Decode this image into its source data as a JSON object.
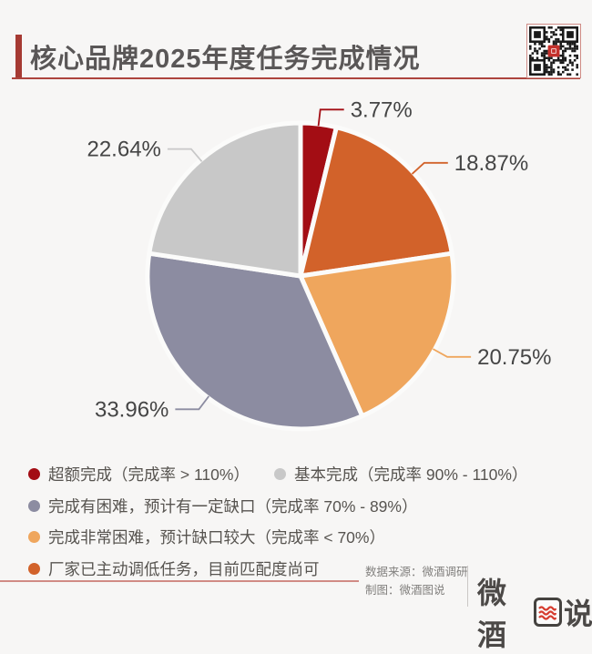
{
  "header": {
    "title": "核心品牌2025年度任务完成情况",
    "accent_color": "#a63a33",
    "qr_icon": "qr-code"
  },
  "chart_data": {
    "type": "pie",
    "title": "核心品牌2025年度任务完成情况",
    "direction": "clockwise",
    "start_angle_deg": 0,
    "legend_position": "bottom-left",
    "series": [
      {
        "name": "超额完成（完成率 > 110%）",
        "value": 3.77,
        "label": "3.77%",
        "color": "#a30d14"
      },
      {
        "name": "厂家已主动调低任务，目前匹配度尚可",
        "value": 18.87,
        "label": "18.87%",
        "color": "#d2622a"
      },
      {
        "name": "完成非常困难，预计缺口较大（完成率 < 70%）",
        "value": 20.75,
        "label": "20.75%",
        "color": "#efa65d"
      },
      {
        "name": "完成有困难，预计有一定缺口（完成率 70% - 89%）",
        "value": 33.96,
        "label": "33.96%",
        "color": "#8c8ca1"
      },
      {
        "name": "基本完成（完成率 90% - 110%）",
        "value": 22.64,
        "label": "22.64%",
        "color": "#c8c8c8"
      }
    ],
    "label_color": "#454545"
  },
  "legend": {
    "items": [
      {
        "color": "#a30d14",
        "label": "超额完成（完成率 > 110%）"
      },
      {
        "color": "#c8c8c8",
        "label": "基本完成（完成率 90% - 110%）"
      },
      {
        "color": "#8c8ca1",
        "label": "完成有困难，预计有一定缺口（完成率 70% - 89%）"
      },
      {
        "color": "#efa65d",
        "label": "完成非常困难，预计缺口较大（完成率 < 70%）"
      },
      {
        "color": "#d2622a",
        "label": "厂家已主动调低任务，目前匹配度尚可"
      }
    ]
  },
  "footer": {
    "source_line1": "数据来源：微酒调研",
    "source_line2": "制图：微酒图说",
    "logo_prefix": "微酒",
    "logo_suffix": "说",
    "logo_icon": "red-waves-icon",
    "logo_icon_color": "#d63c2f"
  }
}
